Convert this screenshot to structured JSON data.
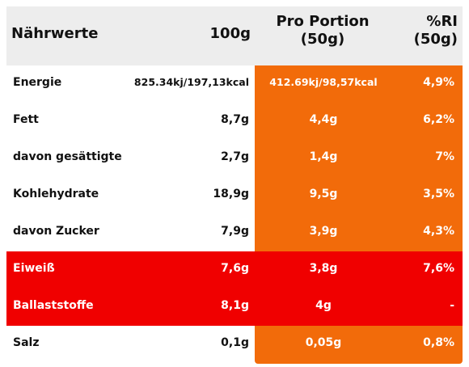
{
  "header": {
    "col1": "Nährwerte",
    "col2": "100g",
    "col3": "Pro Portion\n(50g)",
    "col3_line1": "Pro Portion",
    "col3_line2": "(50g)",
    "col4_line1": "%RI",
    "col4_line2": "(50g)"
  },
  "colors": {
    "header_bg": "#ededed",
    "portion_bg": "#f26b0a",
    "highlight_row_bg": "#f00000"
  },
  "rows": [
    {
      "label": "Energie",
      "per100": "825.34kj/197,13kcal",
      "portion": "412.69kj/98,57kcal",
      "ri": "4,9%",
      "highlight": false
    },
    {
      "label": "Fett",
      "per100": "8,7g",
      "portion": "4,4g",
      "ri": "6,2%",
      "highlight": false
    },
    {
      "label": "davon gesättigte",
      "per100": "2,7g",
      "portion": "1,4g",
      "ri": "7%",
      "highlight": false
    },
    {
      "label": "Kohlehydrate",
      "per100": "18,9g",
      "portion": "9,5g",
      "ri": "3,5%",
      "highlight": false
    },
    {
      "label": "davon Zucker",
      "per100": "7,9g",
      "portion": "3,9g",
      "ri": "4,3%",
      "highlight": false
    },
    {
      "label": "Eiweiß",
      "per100": "7,6g",
      "portion": "3,8g",
      "ri": "7,6%",
      "highlight": true
    },
    {
      "label": "Ballaststoffe",
      "per100": "8,1g",
      "portion": "4g",
      "ri": "-",
      "highlight": true
    },
    {
      "label": "Salz",
      "per100": "0,1g",
      "portion": "0,05g",
      "ri": "0,8%",
      "highlight": false
    }
  ]
}
